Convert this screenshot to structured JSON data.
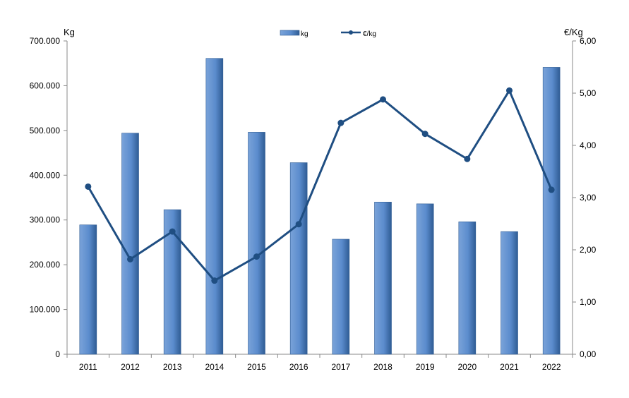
{
  "chart_data": {
    "type": "bar",
    "categories": [
      "2011",
      "2012",
      "2013",
      "2014",
      "2015",
      "2016",
      "2017",
      "2018",
      "2019",
      "2020",
      "2021",
      "2022"
    ],
    "series": [
      {
        "name": "kg",
        "type": "bar",
        "axis": "left",
        "values": [
          289000,
          494000,
          323000,
          661000,
          496000,
          428000,
          257000,
          340000,
          336000,
          296000,
          274000,
          641000
        ]
      },
      {
        "name": "€/kg",
        "type": "line",
        "axis": "right",
        "values": [
          3.21,
          1.82,
          2.35,
          1.41,
          1.87,
          2.49,
          4.43,
          4.88,
          4.22,
          3.74,
          5.05,
          3.15
        ]
      }
    ],
    "ylabel_left": "Kg",
    "ylabel_right": "€/Kg",
    "ylim_left": [
      0,
      700000
    ],
    "ylim_right": [
      0,
      6
    ],
    "yticks_left": [
      "0",
      "100.000",
      "200.000",
      "300.000",
      "400.000",
      "500.000",
      "600.000",
      "700.000"
    ],
    "yticks_right": [
      "0,00",
      "1,00",
      "2,00",
      "3,00",
      "4,00",
      "5,00",
      "6,00"
    ],
    "legend_position": "top-center",
    "grid": false,
    "colors": {
      "bar": "#5b8ccd",
      "bar_edge": "#2f5c94",
      "line": "#1f4e82"
    }
  }
}
